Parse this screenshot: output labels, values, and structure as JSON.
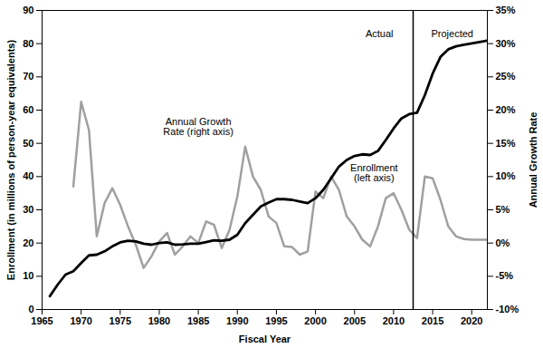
{
  "chart_data": {
    "type": "line",
    "x_label": "Fiscal Year",
    "y_label": "Enrollment (in millions of person-year equivalents)",
    "y2_label": "Annual Growth Rate",
    "xlim": [
      1965,
      2022
    ],
    "xticks": [
      1965,
      1970,
      1975,
      1980,
      1985,
      1990,
      1995,
      2000,
      2005,
      2010,
      2015,
      2020
    ],
    "ylim": [
      0,
      90
    ],
    "yticks": [
      0,
      10,
      20,
      30,
      40,
      50,
      60,
      70,
      80,
      90
    ],
    "y2lim": [
      -10,
      35
    ],
    "y2ticks": [
      {
        "value": -10,
        "label": "-10%"
      },
      {
        "value": -5,
        "label": "-5%"
      },
      {
        "value": 0,
        "label": "0%"
      },
      {
        "value": 5,
        "label": "5%"
      },
      {
        "value": 10,
        "label": "10%"
      },
      {
        "value": 15,
        "label": "15%"
      },
      {
        "value": 20,
        "label": "20%"
      },
      {
        "value": 25,
        "label": "25%"
      },
      {
        "value": 30,
        "label": "30%"
      },
      {
        "value": 35,
        "label": "35%"
      }
    ],
    "grid": false,
    "projection_start": 2012.5,
    "annotations": [
      "Actual",
      "Projected"
    ],
    "x": [
      1966,
      1967,
      1968,
      1969,
      1970,
      1971,
      1972,
      1973,
      1974,
      1975,
      1976,
      1977,
      1978,
      1979,
      1980,
      1981,
      1982,
      1983,
      1984,
      1985,
      1986,
      1987,
      1988,
      1989,
      1990,
      1991,
      1992,
      1993,
      1994,
      1995,
      1996,
      1997,
      1998,
      1999,
      2000,
      2001,
      2002,
      2003,
      2004,
      2005,
      2006,
      2007,
      2008,
      2009,
      2010,
      2011,
      2012,
      2013,
      2014,
      2015,
      2016,
      2017,
      2018,
      2019,
      2020,
      2021,
      2022
    ],
    "series": [
      {
        "name": "Enrollment\n(left axis)",
        "color": "#000000",
        "values": [
          4,
          7.5,
          10.5,
          11.5,
          14,
          16.3,
          16.5,
          17.5,
          19,
          20.2,
          20.7,
          20.5,
          19.8,
          19.5,
          20,
          20.2,
          19.5,
          19.6,
          19.8,
          19.8,
          20.3,
          20.8,
          20.7,
          21,
          22.5,
          26,
          28.5,
          31,
          32.2,
          33.2,
          33.2,
          33,
          32.5,
          32,
          33.5,
          36,
          39.5,
          43,
          45,
          46.2,
          46.7,
          46.5,
          47.7,
          51,
          54.5,
          57.5,
          58.8,
          59.2,
          64.5,
          71,
          76,
          78.3,
          79.2,
          79.7,
          80.1,
          80.5,
          80.9
        ]
      },
      {
        "name": "Annual Growth\nRate (right axis)",
        "color": "#a0a0a0",
        "axis": "y2",
        "values": [
          null,
          null,
          null,
          8.5,
          21.25,
          17,
          1,
          6,
          8.25,
          5.75,
          2.5,
          -0.25,
          -3.75,
          -2,
          0.25,
          1.5,
          -1.75,
          -0.5,
          1,
          0,
          3.25,
          2.75,
          -0.75,
          2,
          7,
          14.5,
          10,
          8,
          4,
          3,
          -0.5,
          -0.6,
          -1.75,
          -1.25,
          7.75,
          6.75,
          10,
          8,
          4,
          2.5,
          0.5,
          -0.5,
          2.5,
          6.75,
          7.5,
          5,
          2,
          0.75,
          10,
          9.75,
          6.5,
          2.5,
          1,
          0.6,
          0.5,
          0.5,
          0.5
        ]
      }
    ]
  }
}
